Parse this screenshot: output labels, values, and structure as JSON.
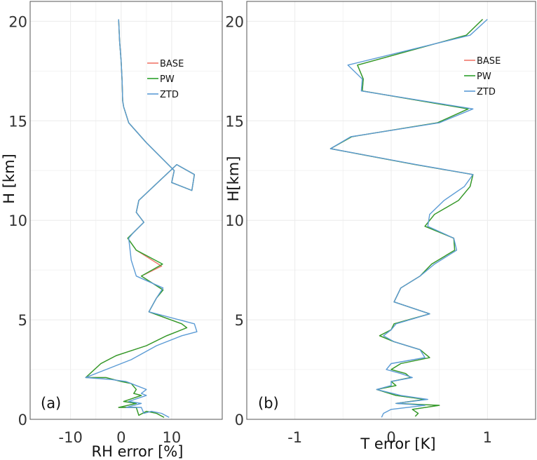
{
  "chart_data": [
    {
      "type": "line",
      "panel_label": "(a)",
      "xlabel": "RH error [%]",
      "ylabel": "H [km]",
      "xlim": [
        -18,
        20
      ],
      "ylim": [
        0,
        21
      ],
      "xticks": [
        -10,
        0,
        10
      ],
      "xtick_labels": [
        "-10",
        "0",
        "10"
      ],
      "yticks": [
        0,
        5,
        10,
        15,
        20
      ],
      "ytick_labels": [
        "0",
        "5",
        "10",
        "15",
        "20"
      ],
      "grid": true,
      "legend_position": "top-right",
      "series": [
        {
          "name": "BASE",
          "color": "#f0776b",
          "points": [
            [
              -0.5,
              20.1
            ],
            [
              -0.3,
              19
            ],
            [
              0,
              18
            ],
            [
              0.2,
              17
            ],
            [
              0.3,
              16
            ],
            [
              0.5,
              15.7
            ],
            [
              1.5,
              14.9
            ],
            [
              5,
              13.9
            ],
            [
              10.5,
              12.5
            ],
            [
              10,
              11.9
            ],
            [
              14,
              11.5
            ],
            [
              14.5,
              12.3
            ],
            [
              11,
              12.8
            ],
            [
              3.5,
              11
            ],
            [
              3,
              10.4
            ],
            [
              4.5,
              9.9
            ],
            [
              2.5,
              9.4
            ],
            [
              1.3,
              9.1
            ],
            [
              3,
              8.5
            ],
            [
              8,
              7.7
            ],
            [
              4,
              7.2
            ],
            [
              8.3,
              6.5
            ],
            [
              7,
              6.1
            ],
            [
              5.5,
              5.4
            ],
            [
              12,
              4.8
            ],
            [
              13,
              4.6
            ],
            [
              9,
              4.2
            ],
            [
              5,
              3.7
            ],
            [
              -1,
              3.2
            ],
            [
              -4,
              2.8
            ],
            [
              -7,
              2.1
            ],
            [
              -3,
              2.1
            ],
            [
              0,
              1.9
            ],
            [
              2,
              1.8
            ],
            [
              3,
              1.5
            ],
            [
              2.5,
              1.3
            ],
            [
              4,
              1.2
            ],
            [
              0.5,
              0.9
            ],
            [
              3,
              0.8
            ],
            [
              -0.5,
              0.6
            ],
            [
              3,
              0.6
            ],
            [
              3.5,
              0.2
            ],
            [
              5,
              0.4
            ],
            [
              7,
              0.3
            ],
            [
              8.5,
              0.1
            ]
          ]
        },
        {
          "name": "PW",
          "color": "#2ca02c",
          "points": [
            [
              -0.5,
              20.1
            ],
            [
              -0.3,
              19
            ],
            [
              0,
              18
            ],
            [
              0.2,
              17
            ],
            [
              0.3,
              16
            ],
            [
              0.5,
              15.7
            ],
            [
              1.5,
              14.9
            ],
            [
              5,
              13.9
            ],
            [
              10.5,
              12.5
            ],
            [
              10,
              11.9
            ],
            [
              14,
              11.5
            ],
            [
              14.5,
              12.3
            ],
            [
              11,
              12.8
            ],
            [
              3.5,
              11
            ],
            [
              3,
              10.4
            ],
            [
              4.5,
              9.9
            ],
            [
              2.5,
              9.4
            ],
            [
              1.3,
              9.1
            ],
            [
              3,
              8.5
            ],
            [
              8.2,
              7.8
            ],
            [
              4,
              7.2
            ],
            [
              8.3,
              6.5
            ],
            [
              7,
              6.1
            ],
            [
              5.5,
              5.4
            ],
            [
              12,
              4.8
            ],
            [
              13,
              4.6
            ],
            [
              9,
              4.2
            ],
            [
              5,
              3.7
            ],
            [
              -1,
              3.2
            ],
            [
              -4,
              2.8
            ],
            [
              -7,
              2.1
            ],
            [
              -3,
              2.1
            ],
            [
              0,
              1.9
            ],
            [
              2,
              1.8
            ],
            [
              3,
              1.5
            ],
            [
              2.5,
              1.3
            ],
            [
              4,
              1.2
            ],
            [
              0.5,
              0.9
            ],
            [
              3,
              0.8
            ],
            [
              -0.5,
              0.6
            ],
            [
              3,
              0.6
            ],
            [
              3.5,
              0.2
            ],
            [
              5,
              0.4
            ],
            [
              7,
              0.3
            ],
            [
              8.5,
              0.1
            ]
          ]
        },
        {
          "name": "ZTD",
          "color": "#5b9bd5",
          "points": [
            [
              -0.5,
              20.1
            ],
            [
              -0.3,
              19
            ],
            [
              0,
              18
            ],
            [
              0.2,
              17
            ],
            [
              0.3,
              16
            ],
            [
              0.5,
              15.7
            ],
            [
              1.5,
              14.9
            ],
            [
              5,
              13.9
            ],
            [
              10.5,
              12.5
            ],
            [
              10,
              11.9
            ],
            [
              14,
              11.5
            ],
            [
              14.5,
              12.3
            ],
            [
              11,
              12.8
            ],
            [
              3.5,
              11
            ],
            [
              3,
              10.4
            ],
            [
              4.5,
              9.9
            ],
            [
              2.5,
              9.4
            ],
            [
              1.5,
              9.1
            ],
            [
              2,
              8
            ],
            [
              3,
              7.2
            ],
            [
              8.3,
              6.6
            ],
            [
              7,
              6.1
            ],
            [
              5.5,
              5.4
            ],
            [
              14.5,
              4.8
            ],
            [
              15,
              4.4
            ],
            [
              12,
              4.2
            ],
            [
              7,
              3.7
            ],
            [
              2,
              3
            ],
            [
              -3,
              2.5
            ],
            [
              -7,
              2.1
            ],
            [
              -2,
              2
            ],
            [
              1,
              1.9
            ],
            [
              3,
              1.7
            ],
            [
              5,
              1.5
            ],
            [
              4,
              1.3
            ],
            [
              5,
              1.2
            ],
            [
              1.5,
              0.9
            ],
            [
              4,
              0.8
            ],
            [
              1,
              0.6
            ],
            [
              4,
              0.6
            ],
            [
              4.5,
              0.3
            ],
            [
              6,
              0.4
            ],
            [
              8,
              0.3
            ],
            [
              9.5,
              0.1
            ]
          ]
        }
      ]
    },
    {
      "type": "line",
      "panel_label": "(b)",
      "xlabel": "T error [K]",
      "ylabel": "H[km]",
      "xlim": [
        -1.5,
        1.5
      ],
      "ylim": [
        0,
        21
      ],
      "xticks": [
        -1,
        0,
        1
      ],
      "xtick_labels": [
        "-1",
        "0",
        "1"
      ],
      "yticks": [
        0,
        5,
        10,
        15,
        20
      ],
      "ytick_labels": [
        "0",
        "5",
        "10",
        "15",
        "20"
      ],
      "grid": true,
      "legend_position": "top-right",
      "series": [
        {
          "name": "BASE",
          "color": "#f0776b",
          "points": [
            [
              0.95,
              20.1
            ],
            [
              0.78,
              19.3
            ],
            [
              -0.35,
              17.8
            ],
            [
              -0.29,
              17.1
            ],
            [
              -0.3,
              16.5
            ],
            [
              0.8,
              15.6
            ],
            [
              0.48,
              14.9
            ],
            [
              -0.41,
              14.2
            ],
            [
              -0.63,
              13.6
            ],
            [
              0.25,
              12.8
            ],
            [
              0.85,
              12.3
            ],
            [
              0.82,
              11.7
            ],
            [
              0.7,
              11
            ],
            [
              0.45,
              10.3
            ],
            [
              0.35,
              9.7
            ],
            [
              0.65,
              9.1
            ],
            [
              0.66,
              8.5
            ],
            [
              0.42,
              7.8
            ],
            [
              0.3,
              7.2
            ],
            [
              0.1,
              6.6
            ],
            [
              0.03,
              5.9
            ],
            [
              0.4,
              5.3
            ],
            [
              0.03,
              4.8
            ],
            [
              0,
              4.5
            ],
            [
              -0.12,
              4.2
            ],
            [
              0.03,
              3.9
            ],
            [
              0.3,
              3.5
            ],
            [
              0.4,
              3.1
            ],
            [
              0.1,
              2.8
            ],
            [
              0,
              2.5
            ],
            [
              0.15,
              2.3
            ],
            [
              0.2,
              2.1
            ],
            [
              0,
              1.9
            ],
            [
              0.05,
              1.7
            ],
            [
              -0.15,
              1.5
            ],
            [
              0.05,
              1.2
            ],
            [
              0.35,
              1
            ],
            [
              0.05,
              0.8
            ],
            [
              0.5,
              0.7
            ],
            [
              0.22,
              0.5
            ],
            [
              0.28,
              0.3
            ],
            [
              0.25,
              0.15
            ]
          ]
        },
        {
          "name": "PW",
          "color": "#2ca02c",
          "points": [
            [
              0.95,
              20.1
            ],
            [
              0.78,
              19.3
            ],
            [
              -0.35,
              17.8
            ],
            [
              -0.29,
              17.1
            ],
            [
              -0.3,
              16.5
            ],
            [
              0.8,
              15.6
            ],
            [
              0.48,
              14.9
            ],
            [
              -0.41,
              14.2
            ],
            [
              -0.63,
              13.6
            ],
            [
              0.25,
              12.8
            ],
            [
              0.85,
              12.3
            ],
            [
              0.82,
              11.7
            ],
            [
              0.7,
              11
            ],
            [
              0.45,
              10.3
            ],
            [
              0.35,
              9.7
            ],
            [
              0.65,
              9.1
            ],
            [
              0.66,
              8.5
            ],
            [
              0.42,
              7.8
            ],
            [
              0.3,
              7.2
            ],
            [
              0.1,
              6.6
            ],
            [
              0.03,
              5.9
            ],
            [
              0.4,
              5.3
            ],
            [
              0.03,
              4.8
            ],
            [
              0,
              4.5
            ],
            [
              -0.12,
              4.2
            ],
            [
              0.03,
              3.9
            ],
            [
              0.3,
              3.5
            ],
            [
              0.4,
              3.1
            ],
            [
              0.1,
              2.8
            ],
            [
              0,
              2.5
            ],
            [
              0.15,
              2.3
            ],
            [
              0.2,
              2.1
            ],
            [
              0,
              1.9
            ],
            [
              0.05,
              1.7
            ],
            [
              -0.15,
              1.5
            ],
            [
              0.05,
              1.2
            ],
            [
              0.35,
              1
            ],
            [
              0.05,
              0.8
            ],
            [
              0.5,
              0.7
            ],
            [
              0.22,
              0.5
            ],
            [
              0.28,
              0.3
            ],
            [
              0.25,
              0.15
            ]
          ]
        },
        {
          "name": "ZTD",
          "color": "#5b9bd5",
          "points": [
            [
              1,
              20.1
            ],
            [
              0.82,
              19.3
            ],
            [
              -0.45,
              17.8
            ],
            [
              -0.3,
              17.1
            ],
            [
              -0.31,
              16.5
            ],
            [
              0.85,
              15.6
            ],
            [
              0.5,
              14.9
            ],
            [
              -0.42,
              14.2
            ],
            [
              -0.63,
              13.6
            ],
            [
              0.26,
              12.8
            ],
            [
              0.85,
              12.3
            ],
            [
              0.76,
              11.7
            ],
            [
              0.55,
              11
            ],
            [
              0.4,
              10.3
            ],
            [
              0.38,
              9.7
            ],
            [
              0.65,
              9.1
            ],
            [
              0.68,
              8.5
            ],
            [
              0.45,
              7.8
            ],
            [
              0.3,
              7.2
            ],
            [
              0.1,
              6.6
            ],
            [
              0.03,
              5.9
            ],
            [
              0.4,
              5.3
            ],
            [
              0.05,
              4.8
            ],
            [
              0,
              4.5
            ],
            [
              -0.08,
              4.2
            ],
            [
              0.03,
              3.9
            ],
            [
              0.3,
              3.5
            ],
            [
              0.35,
              3.1
            ],
            [
              0,
              2.8
            ],
            [
              -0.05,
              2.5
            ],
            [
              0.1,
              2.3
            ],
            [
              0.22,
              2.1
            ],
            [
              0,
              1.9
            ],
            [
              0,
              1.7
            ],
            [
              -0.15,
              1.5
            ],
            [
              0.1,
              1.2
            ],
            [
              0.38,
              1
            ],
            [
              0.05,
              0.8
            ],
            [
              0.35,
              0.7
            ],
            [
              0,
              0.5
            ],
            [
              -0.08,
              0.3
            ],
            [
              -0.1,
              0.1
            ]
          ]
        }
      ]
    }
  ]
}
